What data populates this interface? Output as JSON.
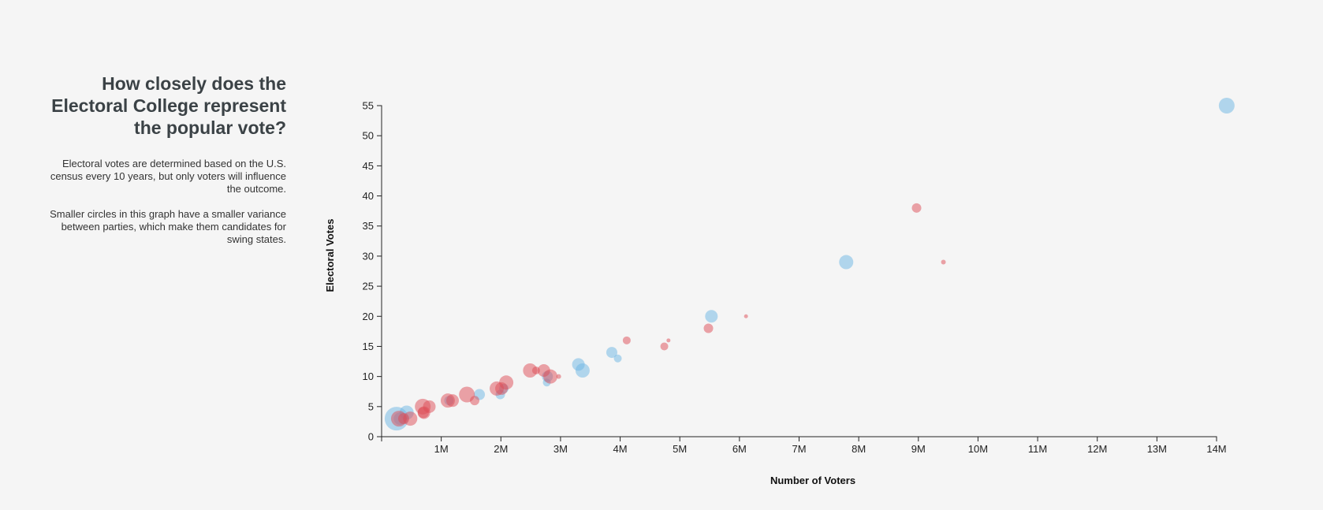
{
  "intro": {
    "title": "How closely does the Electoral College represent the popular vote?",
    "paragraph_1": "Electoral votes are determined based on the U.S. census every 10 years, but only voters will influence the outcome.",
    "paragraph_2": "Smaller circles in this graph have a smaller variance between parties, which make them candidates for swing states."
  },
  "colors": {
    "blue": "#6bb6e4",
    "red": "#de4c56",
    "axis": "#222222",
    "background": "#f5f5f5"
  },
  "chart_data": {
    "type": "scatter",
    "title": "",
    "xlabel": "Number of Voters",
    "ylabel": "Electoral Votes",
    "xlim": [
      0,
      14000000
    ],
    "ylim": [
      0,
      55
    ],
    "x_ticks": [
      1000000,
      2000000,
      3000000,
      4000000,
      5000000,
      6000000,
      7000000,
      8000000,
      9000000,
      10000000,
      11000000,
      12000000,
      13000000,
      14000000
    ],
    "x_tick_labels": [
      "1M",
      "2M",
      "3M",
      "4M",
      "5M",
      "6M",
      "7M",
      "8M",
      "9M",
      "10M",
      "11M",
      "12M",
      "13M",
      "14M"
    ],
    "y_ticks": [
      0,
      5,
      10,
      15,
      20,
      25,
      30,
      35,
      40,
      45,
      50,
      55
    ],
    "y_tick_labels": [
      "0",
      "5",
      "10",
      "15",
      "20",
      "25",
      "30",
      "35",
      "40",
      "45",
      "50",
      "55"
    ],
    "grid": false,
    "legend": "none",
    "size_encoding": "variance between parties",
    "series": [
      {
        "party": "blue",
        "points": [
          {
            "x": 14170000,
            "y": 55,
            "r": 10
          },
          {
            "x": 7790000,
            "y": 29,
            "r": 9
          },
          {
            "x": 5530000,
            "y": 20,
            "r": 8
          },
          {
            "x": 3860000,
            "y": 14,
            "r": 7
          },
          {
            "x": 3960000,
            "y": 13,
            "r": 5
          },
          {
            "x": 3300000,
            "y": 12,
            "r": 8
          },
          {
            "x": 3370000,
            "y": 11,
            "r": 9
          },
          {
            "x": 2780000,
            "y": 10,
            "r": 7
          },
          {
            "x": 2770000,
            "y": 9,
            "r": 5
          },
          {
            "x": 1640000,
            "y": 7,
            "r": 7
          },
          {
            "x": 1990000,
            "y": 7,
            "r": 6
          },
          {
            "x": 1130000,
            "y": 6,
            "r": 6
          },
          {
            "x": 420000,
            "y": 4,
            "r": 9
          },
          {
            "x": 250000,
            "y": 3,
            "r": 15
          },
          {
            "x": 310000,
            "y": 3,
            "r": 8
          },
          {
            "x": 2050000,
            "y": 8,
            "r": 6
          }
        ]
      },
      {
        "party": "red",
        "points": [
          {
            "x": 8970000,
            "y": 38,
            "r": 6
          },
          {
            "x": 9420000,
            "y": 29,
            "r": 3
          },
          {
            "x": 6110000,
            "y": 20,
            "r": 2.5
          },
          {
            "x": 5480000,
            "y": 18,
            "r": 6
          },
          {
            "x": 4110000,
            "y": 16,
            "r": 5
          },
          {
            "x": 4810000,
            "y": 16,
            "r": 2.5
          },
          {
            "x": 4740000,
            "y": 15,
            "r": 5
          },
          {
            "x": 2490000,
            "y": 11,
            "r": 9
          },
          {
            "x": 2590000,
            "y": 11,
            "r": 5
          },
          {
            "x": 2720000,
            "y": 11,
            "r": 8
          },
          {
            "x": 2830000,
            "y": 10,
            "r": 9
          },
          {
            "x": 2970000,
            "y": 10,
            "r": 3
          },
          {
            "x": 2090000,
            "y": 9,
            "r": 9
          },
          {
            "x": 2010000,
            "y": 8,
            "r": 8
          },
          {
            "x": 1930000,
            "y": 8,
            "r": 9
          },
          {
            "x": 1430000,
            "y": 7,
            "r": 10
          },
          {
            "x": 1560000,
            "y": 6,
            "r": 6
          },
          {
            "x": 1110000,
            "y": 6,
            "r": 9
          },
          {
            "x": 1190000,
            "y": 6,
            "r": 8
          },
          {
            "x": 690000,
            "y": 5,
            "r": 10
          },
          {
            "x": 710000,
            "y": 4,
            "r": 8
          },
          {
            "x": 700000,
            "y": 4,
            "r": 7
          },
          {
            "x": 800000,
            "y": 5,
            "r": 8
          },
          {
            "x": 480000,
            "y": 3,
            "r": 9
          },
          {
            "x": 290000,
            "y": 3,
            "r": 10
          },
          {
            "x": 370000,
            "y": 3,
            "r": 7
          }
        ]
      }
    ]
  }
}
